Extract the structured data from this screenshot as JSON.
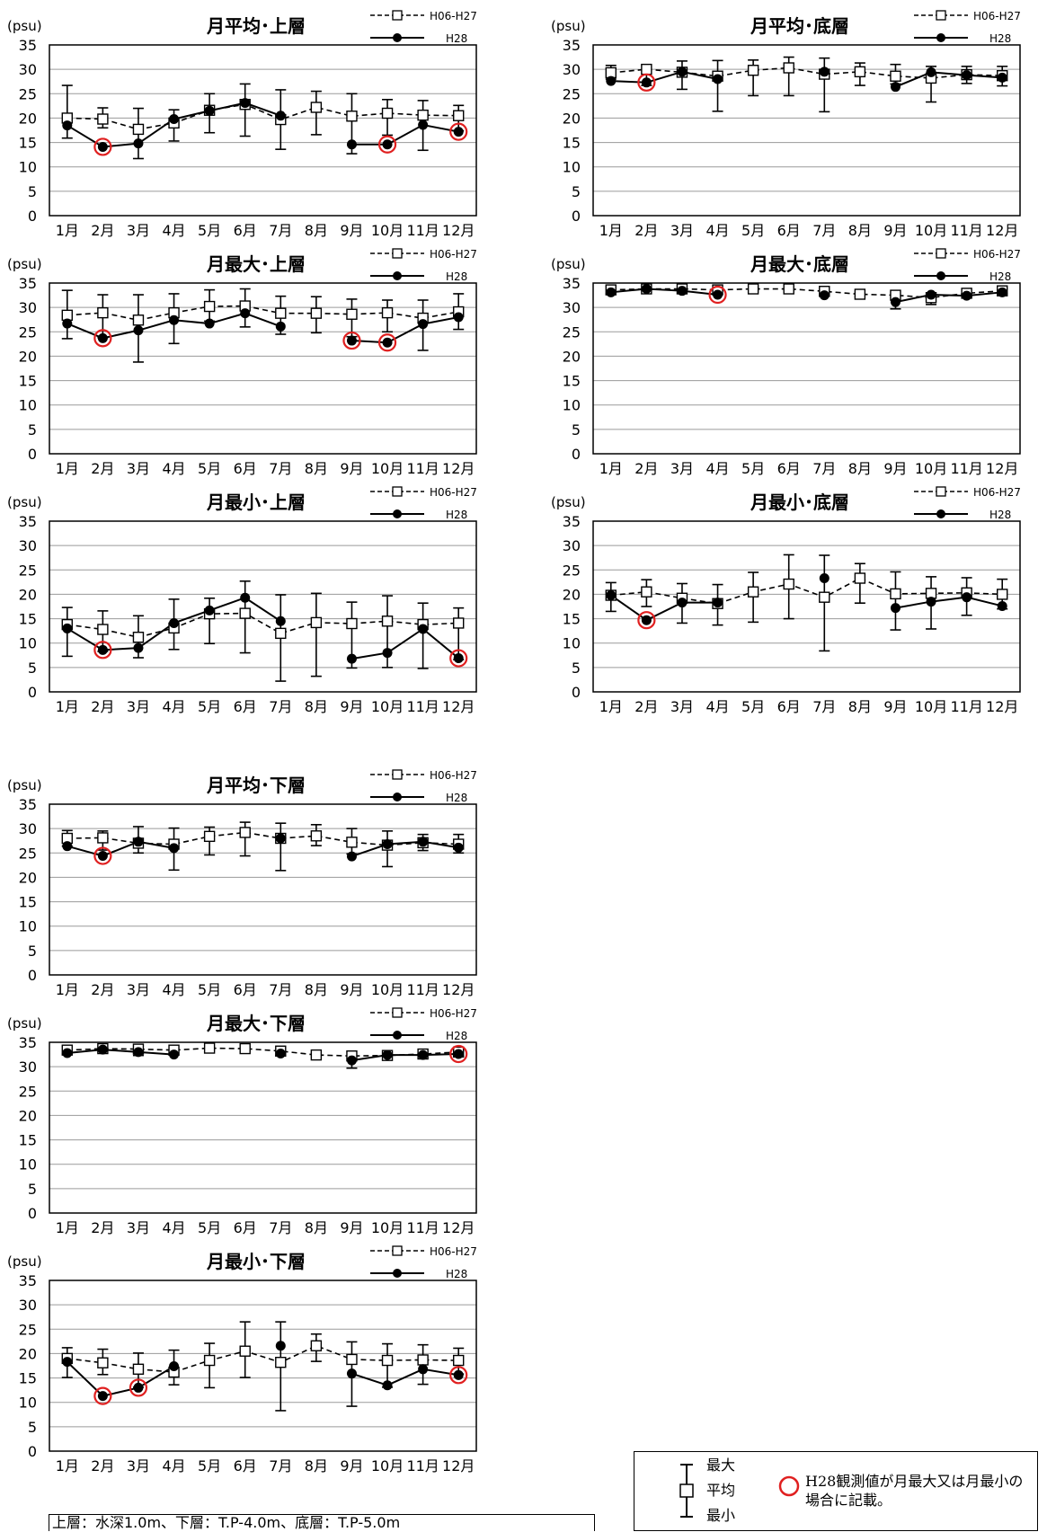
{
  "chart_data": [
    {
      "type": "line",
      "title": "月平均･上層",
      "ylabel": "(psu)",
      "ylim": [
        0,
        35
      ],
      "yticks": [
        "0",
        "5",
        "10",
        "15",
        "20",
        "25",
        "30",
        "35"
      ],
      "categories": [
        "1月",
        "2月",
        "3月",
        "4月",
        "5月",
        "6月",
        "7月",
        "8月",
        "9月",
        "10月",
        "11月",
        "12月"
      ],
      "grid": "horizontal",
      "legend_position": "top-right",
      "series": [
        {
          "name": "H06-H27",
          "style": "dashed-open-square",
          "values": [
            20.0,
            19.8,
            17.7,
            19.0,
            21.6,
            22.8,
            19.7,
            22.2,
            20.4,
            21.0,
            20.6,
            20.5
          ],
          "max": [
            26.7,
            22.1,
            22.0,
            21.7,
            25.0,
            27.0,
            25.8,
            25.5,
            25.0,
            23.8,
            23.6,
            22.6
          ],
          "min": [
            15.9,
            18.0,
            11.7,
            15.3,
            17.0,
            16.3,
            13.6,
            16.6,
            12.7,
            16.5,
            13.4,
            17.4
          ]
        },
        {
          "name": "H28",
          "style": "solid-filled-circle",
          "values": [
            18.5,
            14.1,
            14.8,
            19.8,
            21.5,
            23.1,
            20.5,
            null,
            14.6,
            14.6,
            18.6,
            17.2
          ],
          "highlight": [
            false,
            true,
            false,
            false,
            false,
            false,
            false,
            false,
            false,
            true,
            false,
            true
          ]
        }
      ]
    },
    {
      "type": "line",
      "title": "月平均･底層",
      "ylabel": "(psu)",
      "ylim": [
        0,
        35
      ],
      "yticks": [
        "0",
        "5",
        "10",
        "15",
        "20",
        "25",
        "30",
        "35"
      ],
      "categories": [
        "1月",
        "2月",
        "3月",
        "4月",
        "5月",
        "6月",
        "7月",
        "8月",
        "9月",
        "10月",
        "11月",
        "12月"
      ],
      "grid": "horizontal",
      "legend_position": "top-right",
      "series": [
        {
          "name": "H06-H27",
          "style": "dashed-open-square",
          "values": [
            29.3,
            30.0,
            29.4,
            28.6,
            29.8,
            30.3,
            29.0,
            29.5,
            28.6,
            28.2,
            28.9,
            28.7
          ],
          "max": [
            30.8,
            30.8,
            31.7,
            31.8,
            31.9,
            32.5,
            32.3,
            31.3,
            31.0,
            30.6,
            30.6,
            30.6
          ],
          "min": [
            28.0,
            26.7,
            25.9,
            21.4,
            24.6,
            24.6,
            21.3,
            26.7,
            27.0,
            23.3,
            27.1,
            26.6
          ]
        },
        {
          "name": "H28",
          "style": "solid-filled-circle",
          "values": [
            27.6,
            27.3,
            29.5,
            28.0,
            null,
            null,
            29.5,
            null,
            26.4,
            29.4,
            28.8,
            28.3
          ],
          "highlight": [
            false,
            true,
            false,
            false,
            false,
            false,
            false,
            false,
            false,
            false,
            false,
            false
          ]
        }
      ]
    },
    {
      "type": "line",
      "title": "月最大･上層",
      "ylabel": "(psu)",
      "ylim": [
        0,
        35
      ],
      "yticks": [
        "0",
        "5",
        "10",
        "15",
        "20",
        "25",
        "30",
        "35"
      ],
      "categories": [
        "1月",
        "2月",
        "3月",
        "4月",
        "5月",
        "6月",
        "7月",
        "8月",
        "9月",
        "10月",
        "11月",
        "12月"
      ],
      "grid": "horizontal",
      "legend_position": "top-right",
      "series": [
        {
          "name": "H06-H27",
          "style": "dashed-open-square",
          "values": [
            28.4,
            28.9,
            27.4,
            28.9,
            30.2,
            30.3,
            28.8,
            28.8,
            28.6,
            28.9,
            27.8,
            29.1
          ],
          "max": [
            33.5,
            32.6,
            32.6,
            32.8,
            33.6,
            33.8,
            32.3,
            32.2,
            31.7,
            31.5,
            31.5,
            32.8
          ],
          "min": [
            23.6,
            23.8,
            18.8,
            22.6,
            27.2,
            26.0,
            24.5,
            24.8,
            24.0,
            25.0,
            21.2,
            25.5
          ]
        },
        {
          "name": "H28",
          "style": "solid-filled-circle",
          "values": [
            26.7,
            23.7,
            25.3,
            27.4,
            26.7,
            28.8,
            26.1,
            null,
            23.2,
            22.8,
            26.6,
            28.0
          ],
          "highlight": [
            false,
            true,
            false,
            false,
            false,
            false,
            false,
            false,
            true,
            true,
            false,
            false
          ]
        }
      ]
    },
    {
      "type": "line",
      "title": "月最大･底層",
      "ylabel": "(psu)",
      "ylim": [
        0,
        35
      ],
      "yticks": [
        "0",
        "5",
        "10",
        "15",
        "20",
        "25",
        "30",
        "35"
      ],
      "categories": [
        "1月",
        "2月",
        "3月",
        "4月",
        "5月",
        "6月",
        "7月",
        "8月",
        "9月",
        "10月",
        "11月",
        "12月"
      ],
      "grid": "horizontal",
      "legend_position": "top-right",
      "series": [
        {
          "name": "H06-H27",
          "style": "dashed-open-square",
          "values": [
            33.6,
            33.8,
            33.8,
            33.6,
            33.8,
            33.8,
            33.3,
            32.7,
            32.5,
            32.0,
            32.9,
            33.4
          ],
          "max": [
            34.3,
            34.3,
            34.3,
            34.2,
            34.2,
            34.2,
            33.9,
            33.1,
            33.0,
            33.0,
            33.4,
            33.8
          ],
          "min": [
            32.8,
            33.3,
            33.0,
            32.8,
            33.4,
            33.4,
            32.3,
            32.2,
            29.7,
            30.6,
            32.2,
            32.9
          ]
        },
        {
          "name": "H28",
          "style": "solid-filled-circle",
          "values": [
            33.1,
            33.8,
            33.4,
            32.6,
            null,
            null,
            32.5,
            null,
            31.1,
            32.6,
            32.4,
            33.1
          ],
          "highlight": [
            false,
            false,
            false,
            true,
            false,
            false,
            false,
            false,
            false,
            false,
            false,
            false
          ]
        }
      ]
    },
    {
      "type": "line",
      "title": "月最小･上層",
      "ylabel": "(psu)",
      "ylim": [
        0,
        35
      ],
      "yticks": [
        "0",
        "5",
        "10",
        "15",
        "20",
        "25",
        "30",
        "35"
      ],
      "categories": [
        "1月",
        "2月",
        "3月",
        "4月",
        "5月",
        "6月",
        "7月",
        "8月",
        "9月",
        "10月",
        "11月",
        "12月"
      ],
      "grid": "horizontal",
      "legend_position": "top-right",
      "series": [
        {
          "name": "H06-H27",
          "style": "dashed-open-square",
          "values": [
            13.8,
            12.8,
            11.2,
            13.1,
            16.0,
            16.1,
            12.0,
            14.2,
            14.0,
            14.5,
            13.8,
            14.1
          ],
          "max": [
            17.3,
            16.6,
            15.6,
            19.0,
            19.2,
            22.7,
            19.9,
            20.2,
            18.4,
            19.7,
            18.2,
            17.2
          ],
          "min": [
            7.3,
            8.3,
            7.0,
            8.7,
            9.9,
            8.0,
            2.2,
            3.2,
            4.9,
            5.0,
            4.8,
            6.6
          ]
        },
        {
          "name": "H28",
          "style": "solid-filled-circle",
          "values": [
            13.0,
            8.6,
            9.0,
            14.1,
            16.7,
            19.3,
            14.5,
            null,
            6.8,
            8.0,
            12.9,
            6.9
          ],
          "highlight": [
            false,
            true,
            false,
            false,
            false,
            false,
            false,
            false,
            false,
            false,
            false,
            true
          ]
        }
      ]
    },
    {
      "type": "line",
      "title": "月最小･底層",
      "ylabel": "(psu)",
      "ylim": [
        0,
        35
      ],
      "yticks": [
        "0",
        "5",
        "10",
        "15",
        "20",
        "25",
        "30",
        "35"
      ],
      "categories": [
        "1月",
        "2月",
        "3月",
        "4月",
        "5月",
        "6月",
        "7月",
        "8月",
        "9月",
        "10月",
        "11月",
        "12月"
      ],
      "grid": "horizontal",
      "legend_position": "top-right",
      "series": [
        {
          "name": "H06-H27",
          "style": "dashed-open-square",
          "values": [
            19.8,
            20.5,
            19.2,
            18.1,
            20.5,
            22.1,
            19.4,
            23.3,
            20.1,
            20.2,
            20.3,
            20.0
          ],
          "max": [
            22.4,
            23.0,
            22.2,
            22.0,
            24.5,
            28.1,
            28.0,
            26.3,
            24.6,
            23.6,
            23.4,
            23.1
          ],
          "min": [
            16.5,
            17.5,
            14.1,
            13.7,
            14.3,
            15.0,
            8.4,
            18.2,
            12.7,
            12.9,
            15.7,
            17.0
          ]
        },
        {
          "name": "H28",
          "style": "solid-filled-circle",
          "values": [
            19.8,
            14.7,
            18.3,
            18.3,
            null,
            null,
            23.3,
            null,
            17.2,
            18.5,
            19.4,
            17.6
          ],
          "highlight": [
            false,
            true,
            false,
            false,
            false,
            false,
            false,
            false,
            false,
            false,
            false,
            false
          ]
        }
      ]
    },
    {
      "type": "line",
      "title": "月平均･下層",
      "ylabel": "(psu)",
      "ylim": [
        0,
        35
      ],
      "yticks": [
        "0",
        "5",
        "10",
        "15",
        "20",
        "25",
        "30",
        "35"
      ],
      "categories": [
        "1月",
        "2月",
        "3月",
        "4月",
        "5月",
        "6月",
        "7月",
        "8月",
        "9月",
        "10月",
        "11月",
        "12月"
      ],
      "grid": "horizontal",
      "legend_position": "top-right",
      "series": [
        {
          "name": "H06-H27",
          "style": "dashed-open-square",
          "values": [
            28.0,
            28.1,
            27.0,
            26.8,
            28.4,
            29.2,
            28.0,
            28.5,
            27.2,
            26.6,
            27.1,
            26.8
          ],
          "max": [
            29.6,
            29.5,
            30.4,
            30.1,
            30.3,
            31.3,
            31.1,
            30.8,
            30.0,
            29.5,
            28.8,
            28.8
          ],
          "min": [
            26.4,
            25.6,
            25.0,
            21.5,
            24.6,
            24.4,
            21.4,
            26.5,
            24.8,
            22.2,
            25.5,
            25.0
          ]
        },
        {
          "name": "H28",
          "style": "solid-filled-circle",
          "values": [
            26.4,
            24.4,
            27.3,
            26.0,
            null,
            null,
            28.0,
            null,
            24.3,
            26.8,
            27.3,
            26.1
          ],
          "highlight": [
            false,
            true,
            false,
            false,
            false,
            false,
            false,
            false,
            false,
            false,
            false,
            false
          ]
        }
      ]
    },
    {
      "type": "line",
      "title": "月最大･下層",
      "ylabel": "(psu)",
      "ylim": [
        0,
        35
      ],
      "yticks": [
        "0",
        "5",
        "10",
        "15",
        "20",
        "25",
        "30",
        "35"
      ],
      "categories": [
        "1月",
        "2月",
        "3月",
        "4月",
        "5月",
        "6月",
        "7月",
        "8月",
        "9月",
        "10月",
        "11月",
        "12月"
      ],
      "grid": "horizontal",
      "legend_position": "top-right",
      "series": [
        {
          "name": "H06-H27",
          "style": "dashed-open-square",
          "values": [
            33.4,
            33.7,
            33.6,
            33.4,
            33.8,
            33.7,
            33.2,
            32.4,
            32.2,
            32.3,
            32.6,
            33.0
          ],
          "max": [
            34.1,
            34.2,
            34.2,
            34.1,
            34.1,
            34.1,
            33.8,
            32.9,
            32.9,
            32.9,
            33.2,
            33.5
          ],
          "min": [
            32.6,
            33.0,
            32.3,
            32.4,
            33.4,
            33.2,
            32.2,
            32.0,
            29.7,
            31.9,
            32.0,
            32.3
          ]
        },
        {
          "name": "H28",
          "style": "solid-filled-circle",
          "values": [
            32.8,
            33.5,
            33.0,
            32.5,
            null,
            null,
            32.7,
            null,
            31.3,
            32.4,
            32.4,
            32.6
          ],
          "highlight": [
            false,
            false,
            false,
            false,
            false,
            false,
            false,
            false,
            false,
            false,
            false,
            true
          ]
        }
      ]
    },
    {
      "type": "line",
      "title": "月最小･下層",
      "ylabel": "(psu)",
      "ylim": [
        0,
        35
      ],
      "yticks": [
        "0",
        "5",
        "10",
        "15",
        "20",
        "25",
        "30",
        "35"
      ],
      "categories": [
        "1月",
        "2月",
        "3月",
        "4月",
        "5月",
        "6月",
        "7月",
        "8月",
        "9月",
        "10月",
        "11月",
        "12月"
      ],
      "grid": "horizontal",
      "legend_position": "top-right",
      "series": [
        {
          "name": "H06-H27",
          "style": "dashed-open-square",
          "values": [
            19.0,
            18.1,
            16.8,
            16.2,
            18.6,
            20.5,
            18.2,
            21.6,
            18.8,
            18.6,
            18.7,
            18.6
          ],
          "max": [
            21.2,
            20.9,
            20.1,
            20.7,
            22.1,
            26.5,
            26.5,
            24.0,
            22.4,
            22.0,
            21.8,
            21.1
          ],
          "min": [
            15.1,
            15.7,
            13.1,
            13.6,
            13.0,
            15.1,
            8.3,
            18.4,
            9.2,
            13.1,
            13.7,
            15.8
          ]
        },
        {
          "name": "H28",
          "style": "solid-filled-circle",
          "values": [
            18.3,
            11.3,
            13.0,
            17.4,
            null,
            null,
            21.6,
            null,
            15.9,
            13.5,
            16.8,
            15.6
          ],
          "highlight": [
            false,
            true,
            true,
            false,
            false,
            false,
            false,
            false,
            false,
            false,
            false,
            true
          ]
        }
      ]
    }
  ],
  "legend": {
    "labels": [
      "最大",
      "平均",
      "最小"
    ],
    "note": "H28観測値が月最大又は月最小の場合に記載。",
    "highlight_color": "#e02020"
  },
  "footnote": "上層：水深1.0m、下層：T.P-4.0m、底層：T.P-5.0m"
}
